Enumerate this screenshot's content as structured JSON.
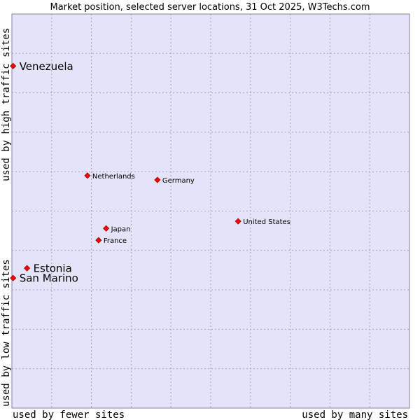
{
  "chart_data": {
    "type": "scatter",
    "title": "Market position, selected server locations, 31 Oct 2025, W3Techs.com",
    "xlabel_left": "used by fewer sites",
    "xlabel_right": "used by many sites",
    "ylabel_bottom": "used by low traffic sites",
    "ylabel_top": "used by high traffic sites",
    "xlim": [
      0,
      100
    ],
    "ylim": [
      0,
      100
    ],
    "grid": true,
    "points": [
      {
        "label": "Venezuela",
        "x": 0.3,
        "y": 86.8,
        "emphasis": true
      },
      {
        "label": "Netherlands",
        "x": 19.0,
        "y": 59.0,
        "emphasis": false
      },
      {
        "label": "Germany",
        "x": 36.6,
        "y": 57.9,
        "emphasis": false
      },
      {
        "label": "United States",
        "x": 56.9,
        "y": 47.4,
        "emphasis": false
      },
      {
        "label": "Japan",
        "x": 23.7,
        "y": 45.6,
        "emphasis": false
      },
      {
        "label": "France",
        "x": 21.8,
        "y": 42.6,
        "emphasis": false
      },
      {
        "label": "Estonia",
        "x": 3.8,
        "y": 35.5,
        "emphasis": true
      },
      {
        "label": "San Marino",
        "x": 0.3,
        "y": 33.0,
        "emphasis": true
      }
    ]
  },
  "colors": {
    "plot_bg": "#e4e4f8",
    "border": "#8080a0",
    "marker": "#ff0000",
    "marker_outline": "#a00000"
  }
}
